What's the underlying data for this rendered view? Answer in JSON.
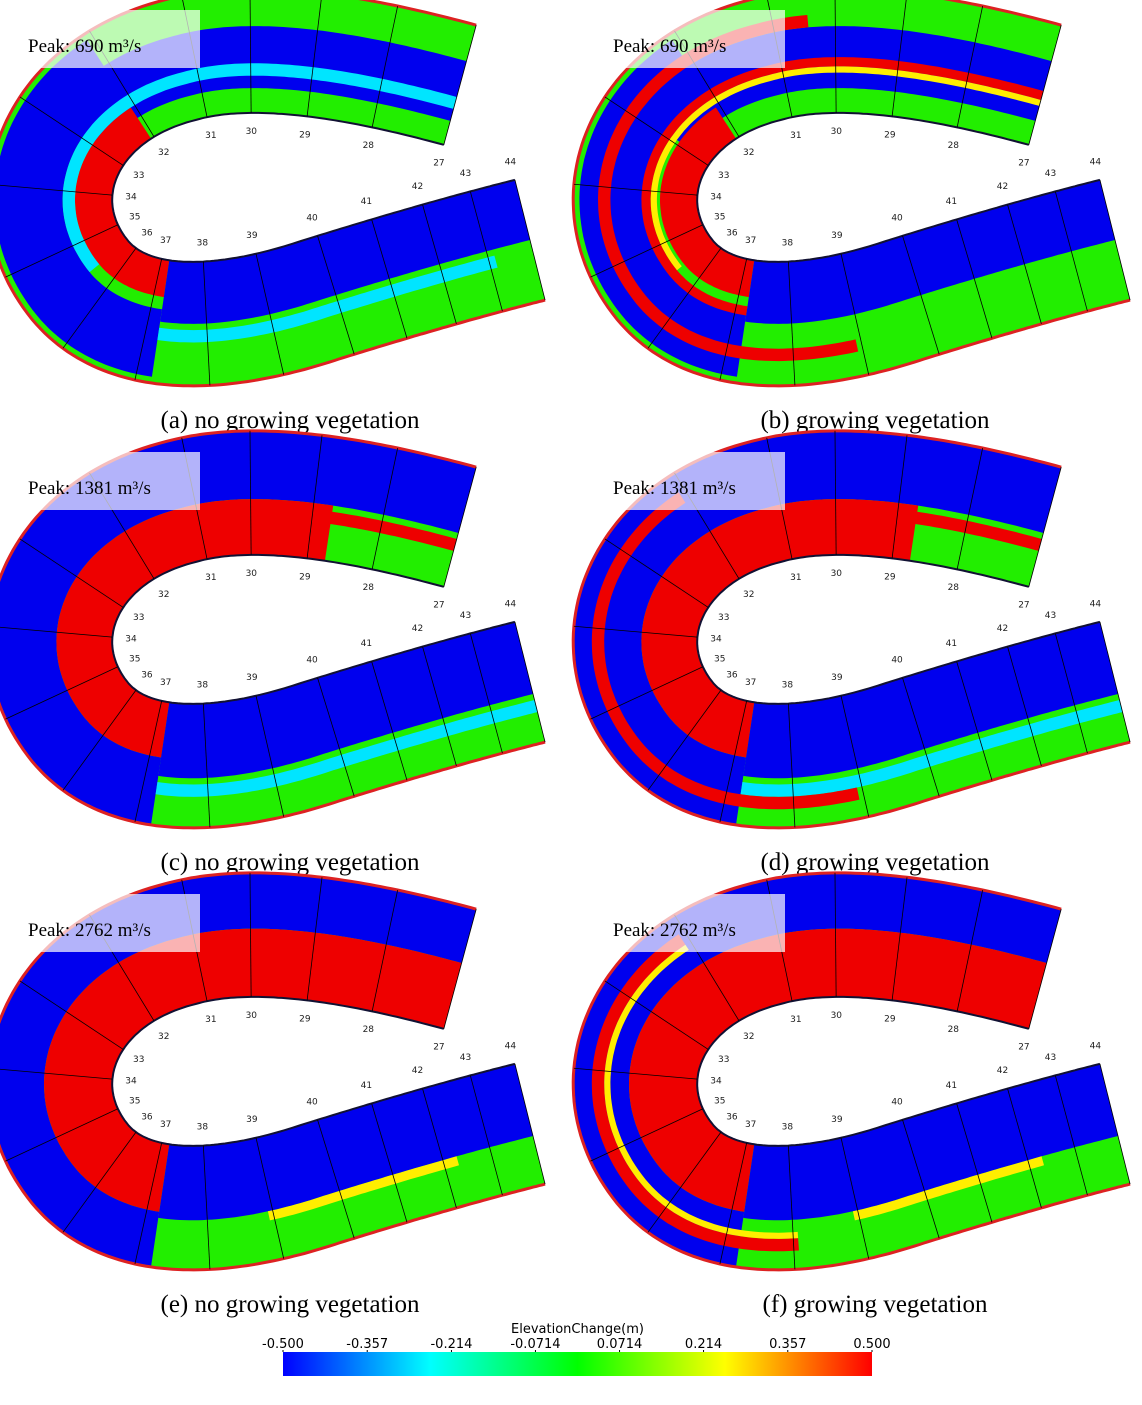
{
  "panels": [
    {
      "peak": "Peak: 690 m³/s",
      "caption": "(a) no growing vegetation"
    },
    {
      "peak": "Peak: 690 m³/s",
      "caption": "(b) growing vegetation"
    },
    {
      "peak": "Peak: 1381 m³/s",
      "caption": "(c) no growing vegetation"
    },
    {
      "peak": "Peak: 1381 m³/s",
      "caption": "(d) growing vegetation"
    },
    {
      "peak": "Peak: 2762 m³/s",
      "caption": "(e) no growing vegetation"
    },
    {
      "peak": "Peak: 2762 m³/s",
      "caption": "(f) growing vegetation"
    }
  ],
  "stations": [
    "27",
    "28",
    "29",
    "30",
    "31",
    "32",
    "33",
    "34",
    "35",
    "36",
    "37",
    "38",
    "39",
    "40",
    "41",
    "42",
    "43",
    "44"
  ],
  "colorbar": {
    "title": "ElevationChange(m)",
    "lim": [
      -0.5,
      0.5
    ],
    "ticks": [
      {
        "value": -0.5,
        "label": "-0.500"
      },
      -0.357,
      -0.214,
      -0.0714,
      0.0714,
      0.214,
      0.357,
      {
        "value": 0.5,
        "label": "0.500"
      }
    ],
    "colors": [
      "#0000ff",
      "#00ffff",
      "#00ff00",
      "#ffff00",
      "#ff0000"
    ]
  }
}
